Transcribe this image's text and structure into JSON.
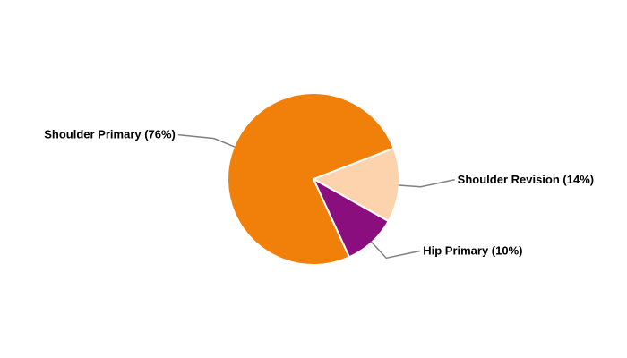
{
  "chart_data": {
    "type": "pie",
    "title": "",
    "slices": [
      {
        "label": "Shoulder Revision (14%)",
        "name": "Shoulder Revision",
        "value": 14,
        "color": "#fcd3ac"
      },
      {
        "label": "Hip Primary (10%)",
        "name": "Hip Primary",
        "value": 10,
        "color": "#8a0e7d"
      },
      {
        "label": "Shoulder Primary (76%)",
        "name": "Shoulder Primary",
        "value": 76,
        "color": "#f08009"
      }
    ],
    "legend": "none",
    "label_style": "outside with leader lines",
    "leader_color": "#808080"
  }
}
